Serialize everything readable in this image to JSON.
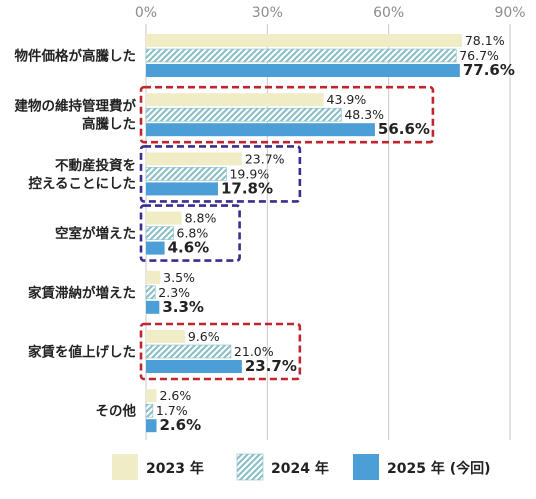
{
  "chart_data": {
    "type": "bar",
    "orientation": "horizontal",
    "categories": [
      "物件価格が高騰した",
      "建物の維持管理費が\n高騰した",
      "不動産投資を\n控えることにした",
      "空室が増えた",
      "家賃滞納が増えた",
      "家賃を値上げした",
      "その他"
    ],
    "series": [
      {
        "name": "2023 年",
        "values": [
          78.1,
          43.9,
          23.7,
          8.8,
          3.5,
          9.6,
          2.6
        ],
        "color": "#efecc6",
        "pattern": "solid"
      },
      {
        "name": "2024 年",
        "values": [
          76.7,
          48.3,
          19.9,
          6.8,
          2.3,
          21.0,
          1.7
        ],
        "color": "#8dbfc9",
        "pattern": "hatched"
      },
      {
        "name": "2025 年 (今回)",
        "values": [
          77.6,
          56.6,
          17.8,
          4.6,
          3.3,
          23.7,
          2.6
        ],
        "color": "#4b9fd6",
        "pattern": "solid"
      }
    ],
    "xlim": [
      0,
      90
    ],
    "ticks": [
      0,
      30,
      60,
      90
    ],
    "tick_labels": [
      "0%",
      "30%",
      "60%",
      "90%"
    ],
    "value_suffix": "%",
    "grid": true,
    "legend_position": "bottom",
    "highlights": [
      {
        "category_index": 1,
        "color": "#c0242c",
        "style": "dashed"
      },
      {
        "category_index": 2,
        "color": "#3b2d8f",
        "style": "dashed"
      },
      {
        "category_index": 3,
        "color": "#3b2d8f",
        "style": "dashed"
      },
      {
        "category_index": 5,
        "color": "#c0242c",
        "style": "dashed"
      }
    ]
  }
}
